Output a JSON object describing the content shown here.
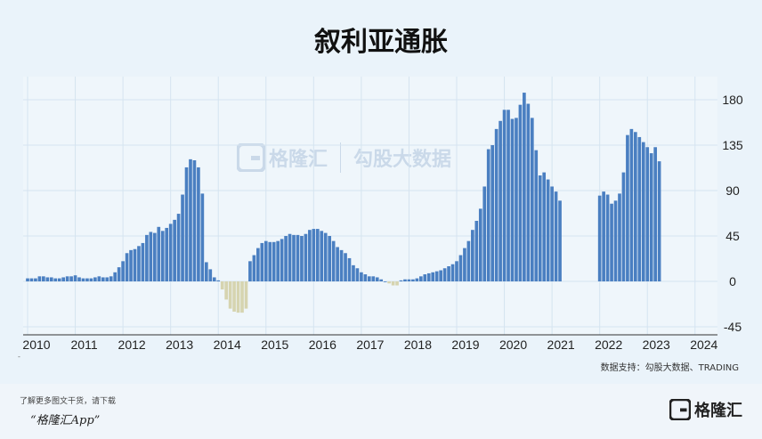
{
  "title": "叙利亚通胀",
  "source": "数据支持：勾股大数据、TRADING",
  "dot_mark": "-",
  "watermark": {
    "brand": "格隆汇",
    "brand2": "勾股大数据"
  },
  "footer": {
    "note": "了解更多图文干货，请下载",
    "app": "“格隆汇App”",
    "logo": "格隆汇"
  },
  "colors": {
    "positive": "#4a7fc1",
    "negative": "#d6d4b0",
    "grid": "#d5e4f0"
  },
  "chart_data": {
    "type": "bar",
    "title": "叙利亚通胀",
    "x_tick_labels": [
      "2010",
      "2011",
      "2012",
      "2013",
      "2014",
      "2015",
      "2016",
      "2017",
      "2018",
      "2019",
      "2020",
      "2021",
      "2022",
      "2023",
      "2024"
    ],
    "y_tick_labels": [
      "180",
      "135",
      "90",
      "45",
      "0",
      "-45"
    ],
    "ylim": [
      -50,
      195
    ],
    "grid": true,
    "series": [
      {
        "values": [
          3,
          3,
          3,
          5,
          5,
          4,
          4,
          3,
          3,
          4,
          5,
          5,
          6,
          4,
          3,
          3,
          3,
          4,
          5,
          4,
          4,
          5,
          9,
          14,
          20,
          28,
          31,
          32,
          35,
          38,
          46,
          49,
          48,
          54,
          50,
          53,
          57,
          61,
          67,
          86,
          113,
          121,
          120,
          113,
          87,
          19,
          12,
          4,
          1,
          -8,
          -18,
          -27,
          -30,
          -31,
          -31,
          -27,
          20,
          26,
          33,
          38,
          40,
          39,
          39,
          40,
          42,
          45,
          47,
          46,
          46,
          45,
          47,
          51,
          52,
          52,
          50,
          48,
          45,
          40,
          34,
          31,
          28,
          23,
          16,
          13,
          9,
          7,
          5,
          5,
          4,
          2,
          0,
          -2,
          -4,
          -4,
          1,
          2,
          2,
          2,
          3,
          5,
          7,
          8,
          9,
          10,
          11,
          13,
          15,
          17,
          20,
          26,
          33,
          40,
          51,
          60,
          72,
          94,
          131,
          135,
          151,
          159,
          170,
          170,
          161,
          162,
          175,
          187,
          176,
          162,
          130,
          105,
          108,
          101,
          94,
          89,
          80,
          null,
          null,
          null,
          null,
          null,
          null,
          null,
          null,
          null,
          85,
          89,
          86,
          77,
          80,
          87,
          108,
          145,
          151,
          148,
          143,
          138,
          133,
          127,
          133,
          119
        ]
      }
    ]
  }
}
